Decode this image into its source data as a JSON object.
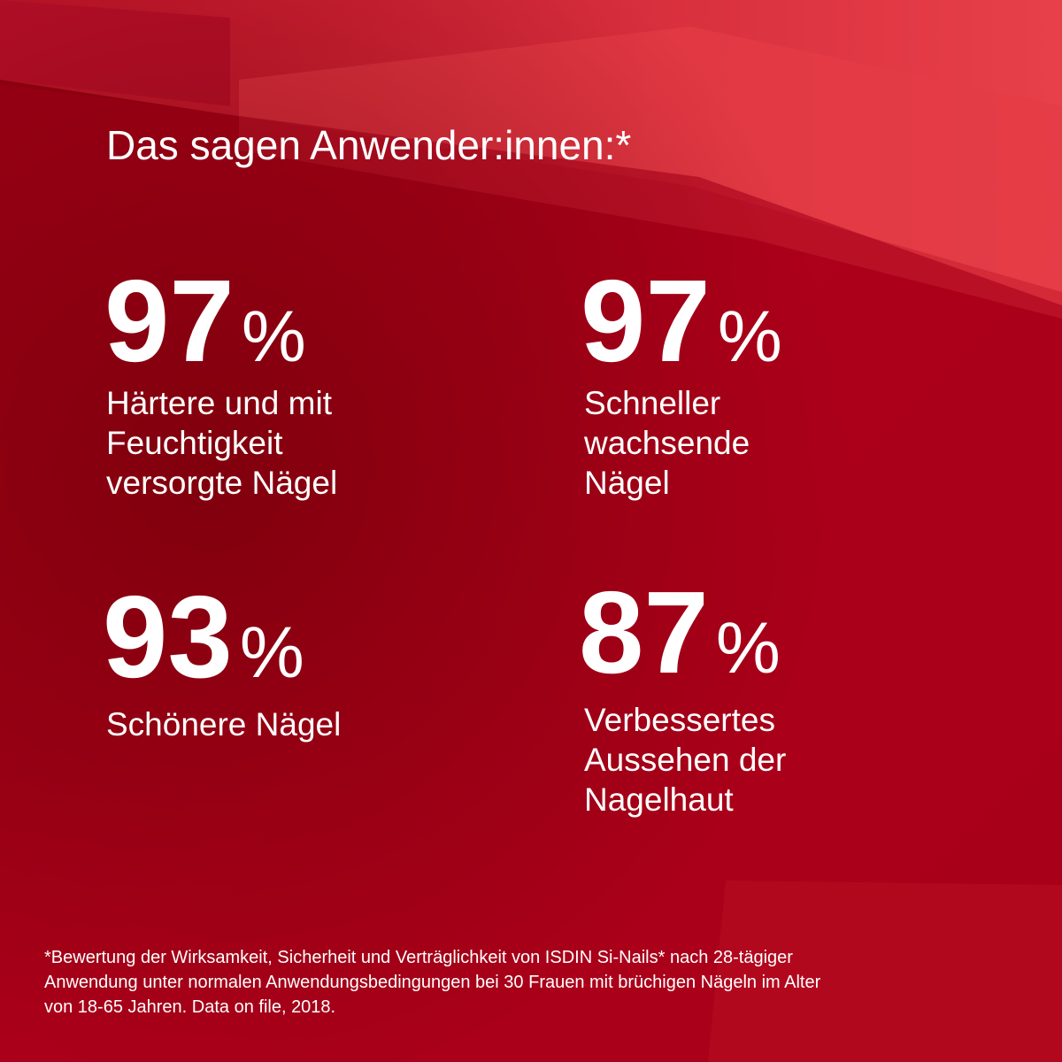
{
  "header": {
    "title": "Das sagen Anwender:innen:*"
  },
  "stats": [
    {
      "value": 97,
      "unit": "%",
      "label_lines": [
        "Härtere und mit",
        "Feuchtigkeit",
        "versorgte Nägel"
      ]
    },
    {
      "value": 97,
      "unit": "%",
      "label_lines": [
        "Schneller",
        "wachsende",
        "Nägel"
      ]
    },
    {
      "value": 93,
      "unit": "%",
      "label_lines": [
        "Schönere Nägel"
      ]
    },
    {
      "value": 87,
      "unit": "%",
      "label_lines": [
        "Verbessertes",
        "Aussehen der",
        "Nagelhaut"
      ]
    }
  ],
  "footnote": {
    "lines": [
      "*Bewertung der Wirksamkeit, Sicherheit und Verträglichkeit von ISDIN Si-Nails* nach 28-tägiger",
      "Anwendung unter normalen Anwendungsbedingungen bei 30 Frauen mit brüchigen Nägeln im Alter",
      "von 18-65 Jahren. Data on file, 2018."
    ]
  }
}
